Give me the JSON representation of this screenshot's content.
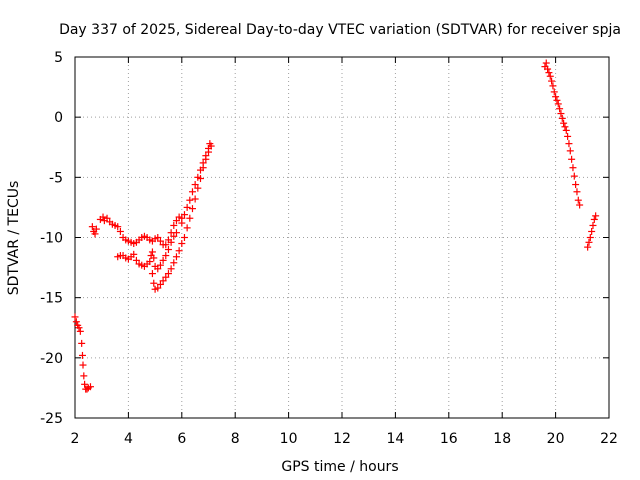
{
  "chart_data": {
    "type": "scatter",
    "title": "Day 337 of 2025, Sidereal Day-to-day VTEC variation (SDTVAR) for receiver spja",
    "xlabel": "GPS time / hours",
    "ylabel": "SDTVAR / TECUs",
    "xlim": [
      2,
      22
    ],
    "ylim": [
      -25,
      5
    ],
    "xticks": [
      2,
      4,
      6,
      8,
      10,
      12,
      14,
      16,
      18,
      20,
      22
    ],
    "yticks": [
      5,
      0,
      -5,
      -10,
      -15,
      -20,
      -25
    ],
    "grid": true,
    "marker": "plus",
    "series_color": "#ff0000",
    "series": [
      {
        "points": [
          [
            2.0,
            -16.6
          ],
          [
            2.05,
            -17.0
          ],
          [
            2.1,
            -17.3
          ],
          [
            2.15,
            -17.5
          ],
          [
            2.2,
            -17.8
          ],
          [
            2.25,
            -18.8
          ],
          [
            2.28,
            -19.8
          ],
          [
            2.3,
            -20.6
          ],
          [
            2.33,
            -21.5
          ],
          [
            2.36,
            -22.2
          ],
          [
            2.4,
            -22.6
          ],
          [
            2.45,
            -22.6
          ],
          [
            2.5,
            -22.5
          ],
          [
            2.58,
            -22.4
          ],
          [
            2.65,
            -9.1
          ],
          [
            2.7,
            -9.5
          ],
          [
            2.75,
            -9.7
          ],
          [
            2.8,
            -9.3
          ],
          [
            2.95,
            -8.5
          ],
          [
            3.05,
            -8.3
          ],
          [
            3.1,
            -8.6
          ],
          [
            3.2,
            -8.4
          ],
          [
            3.3,
            -8.7
          ],
          [
            3.4,
            -8.9
          ],
          [
            3.5,
            -9.0
          ],
          [
            3.6,
            -9.1
          ],
          [
            3.7,
            -9.5
          ],
          [
            3.8,
            -10.0
          ],
          [
            3.9,
            -10.2
          ],
          [
            4.0,
            -10.3
          ],
          [
            4.1,
            -10.4
          ],
          [
            4.2,
            -10.5
          ],
          [
            4.3,
            -10.4
          ],
          [
            4.4,
            -10.2
          ],
          [
            4.5,
            -10.0
          ],
          [
            4.6,
            -9.9
          ],
          [
            4.7,
            -10.0
          ],
          [
            4.8,
            -10.2
          ],
          [
            4.9,
            -10.3
          ],
          [
            5.0,
            -10.1
          ],
          [
            5.1,
            -10.0
          ],
          [
            5.2,
            -10.3
          ],
          [
            5.3,
            -10.6
          ],
          [
            5.4,
            -10.6
          ],
          [
            5.5,
            -10.2
          ],
          [
            5.6,
            -9.6
          ],
          [
            5.7,
            -9.0
          ],
          [
            5.8,
            -8.6
          ],
          [
            5.9,
            -8.3
          ],
          [
            6.0,
            -8.4
          ],
          [
            3.6,
            -11.6
          ],
          [
            3.7,
            -11.5
          ],
          [
            3.8,
            -11.5
          ],
          [
            3.9,
            -11.7
          ],
          [
            4.0,
            -11.8
          ],
          [
            4.1,
            -11.6
          ],
          [
            4.2,
            -11.4
          ],
          [
            4.3,
            -11.9
          ],
          [
            4.4,
            -12.2
          ],
          [
            4.5,
            -12.3
          ],
          [
            4.6,
            -12.4
          ],
          [
            4.7,
            -12.2
          ],
          [
            4.8,
            -12.0
          ],
          [
            4.85,
            -11.5
          ],
          [
            4.9,
            -11.2
          ],
          [
            4.95,
            -11.7
          ],
          [
            5.0,
            -12.4
          ],
          [
            5.1,
            -12.6
          ],
          [
            5.2,
            -12.3
          ],
          [
            5.3,
            -11.9
          ],
          [
            5.4,
            -11.5
          ],
          [
            5.5,
            -11.0
          ],
          [
            5.6,
            -10.4
          ],
          [
            5.7,
            -9.9
          ],
          [
            5.8,
            -9.6
          ],
          [
            4.9,
            -13.0
          ],
          [
            4.95,
            -13.8
          ],
          [
            5.0,
            -14.3
          ],
          [
            5.1,
            -14.2
          ],
          [
            5.2,
            -13.9
          ],
          [
            5.3,
            -13.6
          ],
          [
            5.4,
            -13.3
          ],
          [
            5.5,
            -13.0
          ],
          [
            5.6,
            -12.6
          ],
          [
            5.7,
            -12.1
          ],
          [
            5.8,
            -11.6
          ],
          [
            5.9,
            -11.1
          ],
          [
            6.0,
            -10.5
          ],
          [
            6.1,
            -10.0
          ],
          [
            6.2,
            -9.2
          ],
          [
            6.3,
            -8.4
          ],
          [
            6.4,
            -7.6
          ],
          [
            6.5,
            -6.8
          ],
          [
            6.6,
            -5.9
          ],
          [
            6.7,
            -5.1
          ],
          [
            6.8,
            -4.2
          ],
          [
            6.9,
            -3.5
          ],
          [
            7.0,
            -2.9
          ],
          [
            7.1,
            -2.4
          ],
          [
            6.0,
            -8.8
          ],
          [
            6.1,
            -8.1
          ],
          [
            6.2,
            -7.5
          ],
          [
            6.3,
            -6.9
          ],
          [
            6.4,
            -6.2
          ],
          [
            6.5,
            -5.6
          ],
          [
            6.6,
            -5.0
          ],
          [
            6.7,
            -4.4
          ],
          [
            6.8,
            -3.8
          ],
          [
            6.9,
            -3.2
          ],
          [
            7.0,
            -2.6
          ],
          [
            7.05,
            -2.2
          ],
          [
            19.6,
            4.2
          ],
          [
            19.65,
            4.5
          ],
          [
            19.7,
            4.0
          ],
          [
            19.75,
            3.7
          ],
          [
            19.8,
            3.4
          ],
          [
            19.85,
            3.0
          ],
          [
            19.9,
            2.6
          ],
          [
            19.95,
            2.1
          ],
          [
            20.0,
            1.7
          ],
          [
            20.05,
            1.4
          ],
          [
            20.1,
            1.1
          ],
          [
            20.15,
            0.7
          ],
          [
            20.2,
            0.3
          ],
          [
            20.25,
            -0.1
          ],
          [
            20.3,
            -0.5
          ],
          [
            20.35,
            -0.8
          ],
          [
            20.4,
            -1.1
          ],
          [
            20.45,
            -1.6
          ],
          [
            20.5,
            -2.2
          ],
          [
            20.55,
            -2.8
          ],
          [
            20.6,
            -3.5
          ],
          [
            20.65,
            -4.2
          ],
          [
            20.7,
            -4.9
          ],
          [
            20.75,
            -5.6
          ],
          [
            20.8,
            -6.2
          ],
          [
            20.85,
            -6.9
          ],
          [
            20.9,
            -7.3
          ],
          [
            21.2,
            -10.8
          ],
          [
            21.25,
            -10.4
          ],
          [
            21.3,
            -10.0
          ],
          [
            21.35,
            -9.5
          ],
          [
            21.4,
            -9.0
          ],
          [
            21.45,
            -8.5
          ],
          [
            21.5,
            -8.2
          ]
        ]
      }
    ]
  }
}
